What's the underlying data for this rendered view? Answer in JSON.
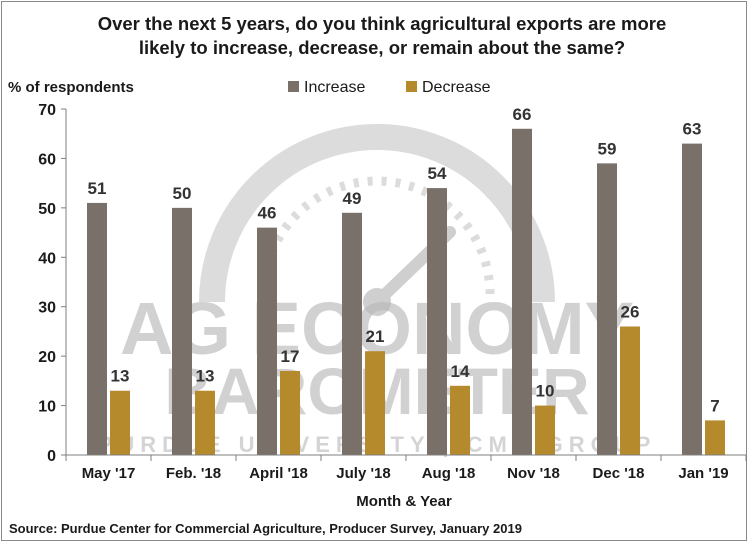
{
  "chart_data": {
    "type": "bar",
    "title": "Over the next 5 years, do you think agricultural exports are more likely to increase, decrease, or remain about the same?",
    "title_lines": [
      "Over the next 5 years, do you think agricultural exports are more",
      "likely to increase, decrease, or remain about the same?"
    ],
    "xlabel": "Month & Year",
    "ylabel": "% of respondents",
    "ylim": [
      0,
      70
    ],
    "yticks": [
      0,
      10,
      20,
      30,
      40,
      50,
      60,
      70
    ],
    "grid": false,
    "legend_position": "top-center",
    "categories": [
      "May '17",
      "Feb. '18",
      "April '18",
      "July '18",
      "Aug '18",
      "Nov '18",
      "Dec '18",
      "Jan '19"
    ],
    "series": [
      {
        "name": "Increase",
        "color": "#7a706a",
        "values": [
          51,
          50,
          46,
          49,
          54,
          66,
          59,
          63
        ]
      },
      {
        "name": "Decrease",
        "color": "#b58a2c",
        "values": [
          13,
          13,
          17,
          21,
          14,
          10,
          26,
          7
        ]
      }
    ],
    "source": "Source: Purdue Center for Commercial Agriculture, Producer Survey, January 2019",
    "watermark": {
      "line1": "AG ECONOMY",
      "line2": "BAROMETER",
      "line3": "PURDUE UNIVERSITY | CME GROUP"
    }
  }
}
